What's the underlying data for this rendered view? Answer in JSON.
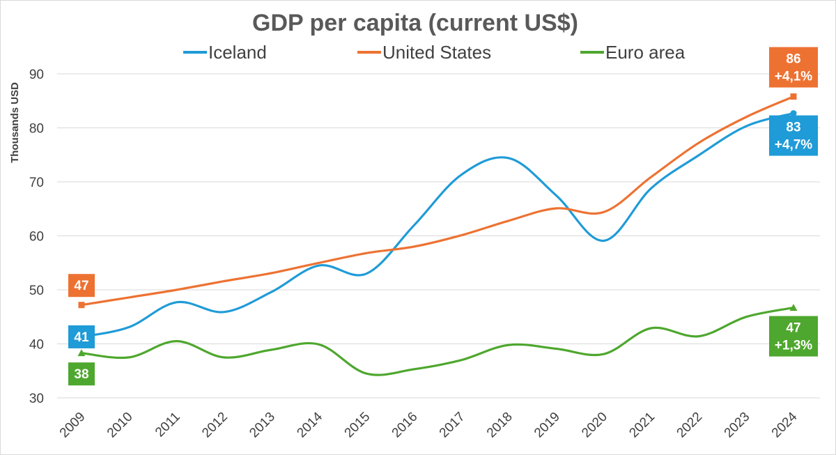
{
  "chart_data": {
    "type": "line",
    "title": "GDP per capita (current US$)",
    "ylabel": "Thousands USD",
    "xlabel": "",
    "ylim": [
      30,
      90
    ],
    "yticks": [
      30,
      40,
      50,
      60,
      70,
      80,
      90
    ],
    "x": [
      "2009",
      "2010",
      "2011",
      "2012",
      "2013",
      "2014",
      "2015",
      "2016",
      "2017",
      "2018",
      "2019",
      "2020",
      "2021",
      "2022",
      "2023",
      "2024"
    ],
    "grid": true,
    "legend": "top",
    "series": [
      {
        "name": "Iceland",
        "color": "#1f9bd7",
        "marker": "circle",
        "values": [
          41.3,
          43.1,
          47.7,
          45.9,
          49.6,
          54.5,
          53.0,
          61.9,
          71.3,
          74.4,
          67.5,
          59.1,
          68.8,
          74.9,
          80.3,
          82.7
        ],
        "callouts": [
          {
            "index": 0,
            "lines": [
              "41"
            ]
          },
          {
            "index": 15,
            "lines": [
              "83",
              "+4,7%"
            ]
          }
        ]
      },
      {
        "name": "United States",
        "color": "#ed7232",
        "marker": "square",
        "values": [
          47.2,
          48.6,
          50.0,
          51.6,
          53.1,
          55.0,
          56.8,
          58.0,
          60.1,
          62.8,
          65.1,
          64.4,
          70.9,
          77.2,
          82.0,
          85.8
        ],
        "callouts": [
          {
            "index": 0,
            "lines": [
              "47"
            ]
          },
          {
            "index": 15,
            "lines": [
              "86",
              "+4,1%"
            ]
          }
        ]
      },
      {
        "name": "Euro area",
        "color": "#4ea72e",
        "marker": "triangle",
        "values": [
          38.3,
          37.5,
          40.5,
          37.5,
          38.9,
          39.9,
          34.5,
          35.3,
          37.0,
          39.8,
          39.1,
          38.1,
          42.9,
          41.4,
          45.0,
          46.7
        ],
        "callouts": [
          {
            "index": 0,
            "lines": [
              "38"
            ]
          },
          {
            "index": 15,
            "lines": [
              "47",
              "+1,3%"
            ]
          }
        ]
      }
    ]
  }
}
